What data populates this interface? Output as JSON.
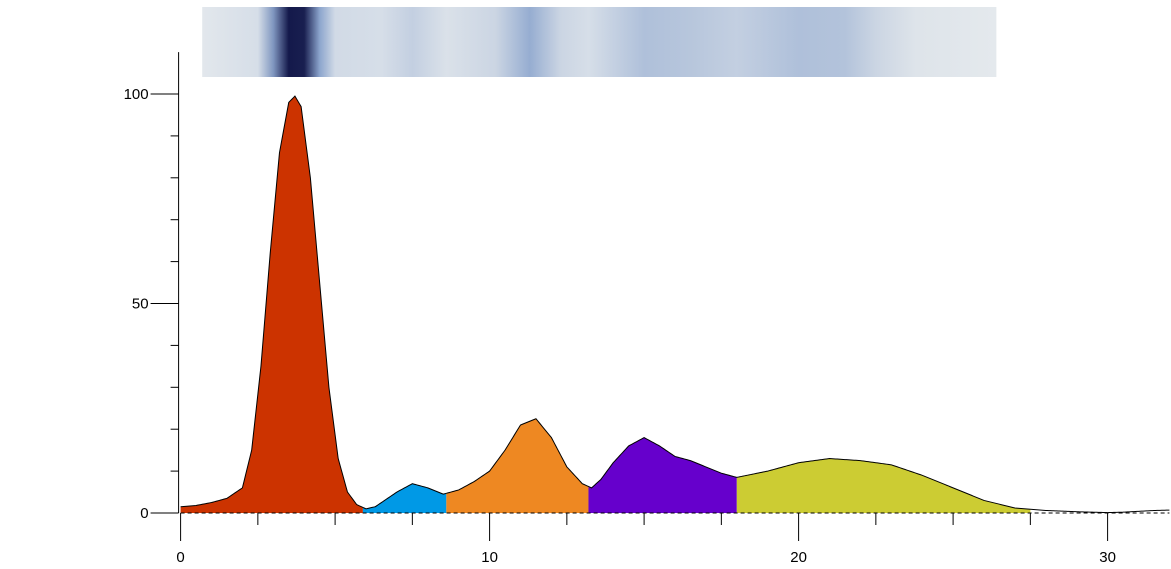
{
  "chart_data": {
    "type": "area",
    "title": "",
    "xlabel": "",
    "ylabel": "",
    "xlim": [
      0,
      32
    ],
    "ylim": [
      0,
      110
    ],
    "x_ticks": [
      0,
      10,
      20,
      30
    ],
    "x_tick_labels": [
      "0",
      "10",
      "20",
      "30"
    ],
    "x_minor_ticks": [
      2.5,
      5,
      7.5,
      12.5,
      15,
      17.5,
      22.5,
      25,
      27.5
    ],
    "y_ticks": [
      0,
      50,
      100
    ],
    "y_tick_labels": [
      "0",
      "50",
      "100"
    ],
    "y_minor_ticks": [
      10,
      20,
      30,
      40,
      60,
      70,
      80,
      90
    ],
    "grid": false,
    "baseline": "dashed",
    "profile": {
      "x": [
        0,
        0.5,
        1,
        1.5,
        2,
        2.3,
        2.6,
        2.9,
        3.2,
        3.5,
        3.7,
        3.9,
        4.2,
        4.5,
        4.8,
        5.1,
        5.4,
        5.7,
        6,
        6.3,
        6.6,
        7,
        7.5,
        8,
        8.5,
        9,
        9.5,
        10,
        10.5,
        11,
        11.5,
        12,
        12.5,
        13,
        13.3,
        13.6,
        14,
        14.5,
        15,
        15.5,
        16,
        16.5,
        17,
        17.5,
        18,
        19,
        20,
        21,
        22,
        23,
        24,
        25,
        26,
        27,
        28,
        29,
        30,
        30.5,
        31,
        31.5,
        32
      ],
      "y": [
        1.5,
        1.8,
        2.5,
        3.5,
        6,
        15,
        35,
        62,
        86,
        98,
        99.5,
        97,
        80,
        55,
        30,
        13,
        5,
        2,
        1,
        1.5,
        3,
        5,
        7,
        6,
        4.5,
        5.5,
        7.5,
        10,
        15,
        21,
        22.5,
        18,
        11,
        7,
        6,
        8,
        12,
        16,
        18,
        16,
        13.5,
        12.5,
        11,
        9.5,
        8.5,
        10,
        12,
        13,
        12.5,
        11.5,
        9,
        6,
        3,
        1.2,
        0.6,
        0.3,
        0.1,
        0.2,
        0.4,
        0.6,
        0.7
      ],
      "fill": "#ffffff"
    },
    "regions": [
      {
        "x_start": 0,
        "x_end": 5.9,
        "color": "#cc3300"
      },
      {
        "x_start": 5.9,
        "x_end": 8.6,
        "color": "#0099e6"
      },
      {
        "x_start": 8.6,
        "x_end": 13.2,
        "color": "#ee8822"
      },
      {
        "x_start": 13.2,
        "x_end": 18,
        "color": "#6600cc"
      },
      {
        "x_start": 18,
        "x_end": 27.5,
        "color": "#cccc33"
      }
    ],
    "gel_strip": {
      "x_start": 0.7,
      "x_end": 26.4,
      "bands": [
        {
          "x": 0.7,
          "intensity": 0.06
        },
        {
          "x": 2.5,
          "intensity": 0.12
        },
        {
          "x": 3.0,
          "intensity": 0.55
        },
        {
          "x": 3.5,
          "intensity": 1.0
        },
        {
          "x": 4.0,
          "intensity": 0.98
        },
        {
          "x": 4.5,
          "intensity": 0.5
        },
        {
          "x": 5.0,
          "intensity": 0.15
        },
        {
          "x": 6.5,
          "intensity": 0.12
        },
        {
          "x": 7.5,
          "intensity": 0.22
        },
        {
          "x": 8.6,
          "intensity": 0.1
        },
        {
          "x": 10.2,
          "intensity": 0.18
        },
        {
          "x": 11.3,
          "intensity": 0.45
        },
        {
          "x": 12.3,
          "intensity": 0.18
        },
        {
          "x": 13.2,
          "intensity": 0.12
        },
        {
          "x": 15.0,
          "intensity": 0.32
        },
        {
          "x": 16.5,
          "intensity": 0.28
        },
        {
          "x": 18.0,
          "intensity": 0.22
        },
        {
          "x": 20.0,
          "intensity": 0.32
        },
        {
          "x": 21.5,
          "intensity": 0.3
        },
        {
          "x": 22.5,
          "intensity": 0.18
        },
        {
          "x": 23.8,
          "intensity": 0.08
        },
        {
          "x": 26.4,
          "intensity": 0.05
        }
      ]
    }
  }
}
